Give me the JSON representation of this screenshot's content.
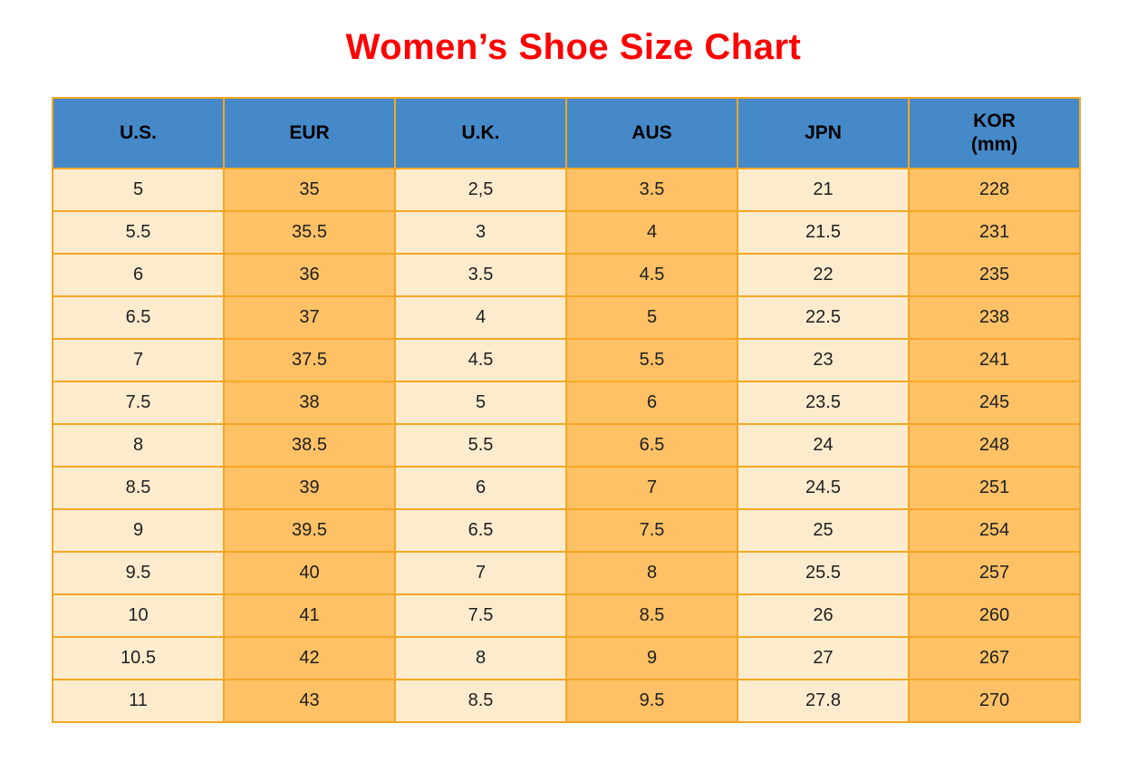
{
  "page": {
    "title": "Women’s Shoe Size Chart",
    "background": "#ffffff",
    "title_color": "#ff0000"
  },
  "chart_data": {
    "type": "table",
    "title": "Women’s Shoe Size Chart",
    "columns": [
      {
        "key": "us",
        "label": "U.S."
      },
      {
        "key": "eur",
        "label": "EUR"
      },
      {
        "key": "uk",
        "label": "U.K."
      },
      {
        "key": "aus",
        "label": "AUS"
      },
      {
        "key": "jpn",
        "label": "JPN"
      },
      {
        "key": "kor",
        "label": "KOR",
        "sublabel": "(mm)"
      }
    ],
    "rows": [
      [
        "5",
        "35",
        "2,5",
        "3.5",
        "21",
        "228"
      ],
      [
        "5.5",
        "35.5",
        "3",
        "4",
        "21.5",
        "231"
      ],
      [
        "6",
        "36",
        "3.5",
        "4.5",
        "22",
        "235"
      ],
      [
        "6.5",
        "37",
        "4",
        "5",
        "22.5",
        "238"
      ],
      [
        "7",
        "37.5",
        "4.5",
        "5.5",
        "23",
        "241"
      ],
      [
        "7.5",
        "38",
        "5",
        "6",
        "23.5",
        "245"
      ],
      [
        "8",
        "38.5",
        "5.5",
        "6.5",
        "24",
        "248"
      ],
      [
        "8.5",
        "39",
        "6",
        "7",
        "24.5",
        "251"
      ],
      [
        "9",
        "39.5",
        "6.5",
        "7.5",
        "25",
        "254"
      ],
      [
        "9.5",
        "40",
        "7",
        "8",
        "25.5",
        "257"
      ],
      [
        "10",
        "41",
        "7.5",
        "8.5",
        "26",
        "260"
      ],
      [
        "10.5",
        "42",
        "8",
        "9",
        "27",
        "267"
      ],
      [
        "11",
        "43",
        "8.5",
        "9.5",
        "27.8",
        "270"
      ]
    ]
  },
  "colors": {
    "header_bg": "#4589c8",
    "header_text": "#000000",
    "cell_cream": "#fdebce",
    "cell_orange": "#fec166",
    "grid_border": "#f5a623",
    "cell_text": "#1f1f1f"
  }
}
